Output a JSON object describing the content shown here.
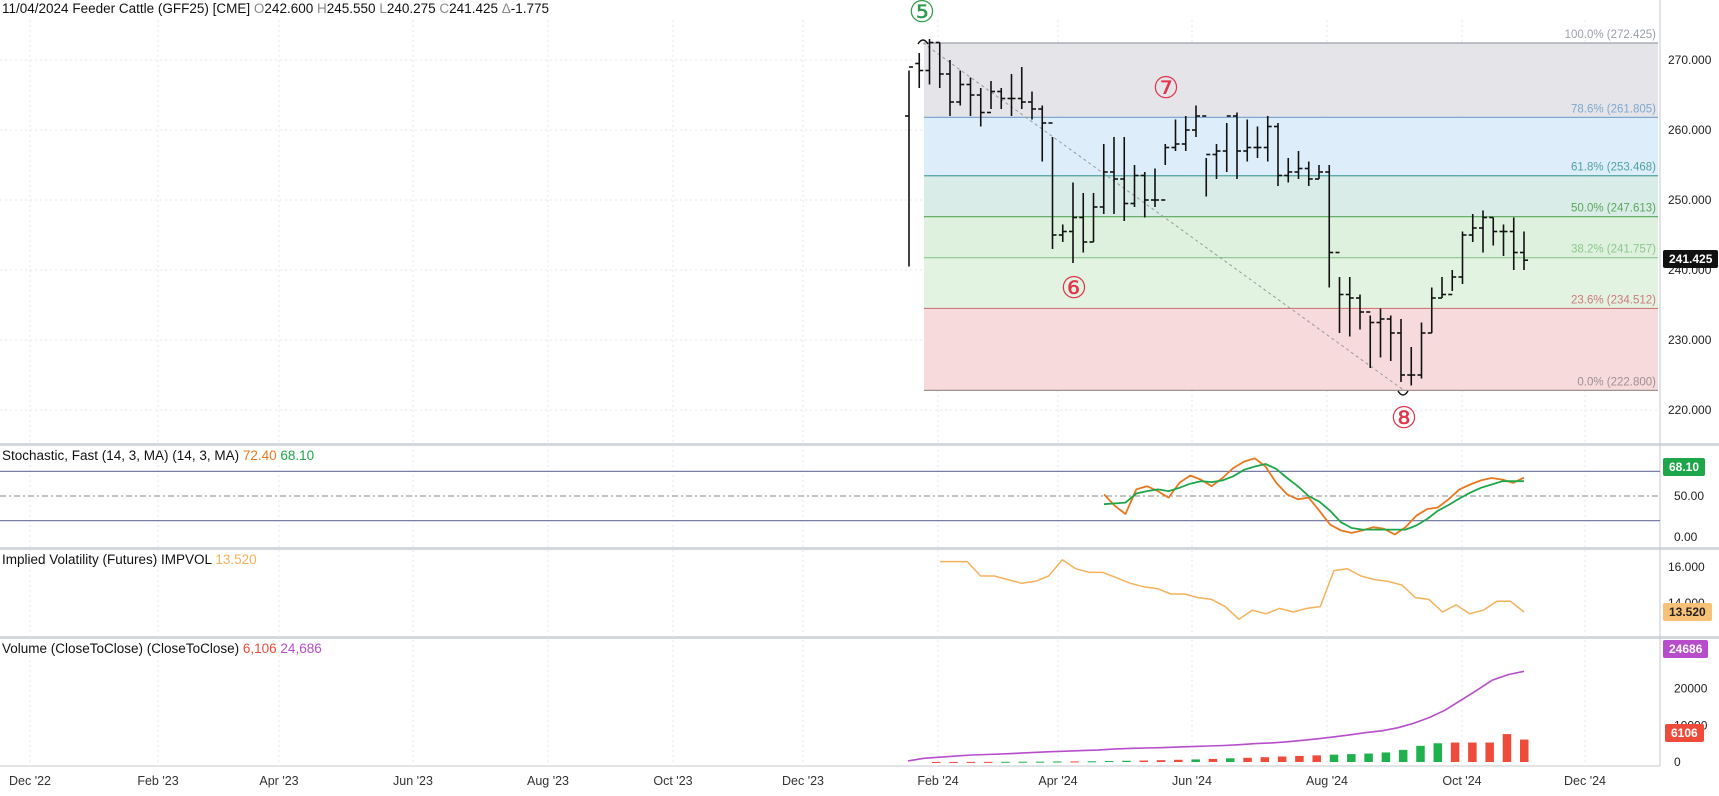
{
  "header": {
    "date": "11/04/2024",
    "symbol": "Feeder Cattle (GFF25) [CME]",
    "open_label": "O",
    "open": "242.600",
    "high_label": "H",
    "high": "245.550",
    "low_label": "L",
    "low": "240.275",
    "close_label": "C",
    "close": "241.425",
    "change_label": "Δ",
    "change": "-1.775"
  },
  "price_panel": {
    "last_price_tag": "241.425",
    "y_ticks": [
      "270.000",
      "260.000",
      "250.000",
      "240.000",
      "230.000",
      "220.000"
    ],
    "fib_levels": [
      {
        "pct": 100.0,
        "label": "100.0% (272.425)",
        "value": 272.425,
        "color": "#9aa0aa"
      },
      {
        "pct": 78.6,
        "label": "78.6% (261.805)",
        "value": 261.805,
        "color": "#7fa7cf"
      },
      {
        "pct": 61.8,
        "label": "61.8% (253.468)",
        "value": 253.468,
        "color": "#4ea3a0"
      },
      {
        "pct": 50.0,
        "label": "50.0% (247.613)",
        "value": 247.613,
        "color": "#5aa85a"
      },
      {
        "pct": 38.2,
        "label": "38.2% (241.757)",
        "value": 241.757,
        "color": "#8cc88c"
      },
      {
        "pct": 23.6,
        "label": "23.6% (234.512)",
        "value": 234.512,
        "color": "#d07a7a"
      },
      {
        "pct": 0.0,
        "label": "0.0% (222.800)",
        "value": 222.8,
        "color": "#a09090"
      }
    ],
    "wave_labels": [
      {
        "text": "⑤",
        "color": "#2e9a4a"
      },
      {
        "text": "⑥",
        "color": "#e0354a"
      },
      {
        "text": "⑦",
        "color": "#e0354a"
      },
      {
        "text": "⑧",
        "color": "#e0354a"
      }
    ],
    "bars": [
      [
        262.0,
        240.5,
        268.5,
        269.0
      ],
      [
        269.5,
        266.0,
        271.0,
        268.5
      ],
      [
        268.5,
        266.5,
        273.0,
        272.5
      ],
      [
        272.5,
        266.0,
        272.5,
        268.0
      ],
      [
        268.0,
        262.0,
        270.0,
        264.0
      ],
      [
        264.0,
        263.5,
        268.5,
        266.5
      ],
      [
        266.5,
        262.0,
        267.5,
        265.0
      ],
      [
        265.0,
        260.5,
        266.0,
        262.5
      ],
      [
        262.5,
        263.0,
        267.0,
        265.5
      ],
      [
        265.5,
        263.0,
        266.0,
        264.5
      ],
      [
        264.5,
        262.0,
        268.0,
        264.5
      ],
      [
        264.5,
        263.0,
        269.0,
        264.0
      ],
      [
        264.0,
        261.5,
        265.5,
        263.0
      ],
      [
        263.0,
        255.5,
        263.5,
        261.0
      ],
      [
        261.0,
        243.0,
        259.0,
        245.0
      ],
      [
        245.0,
        244.0,
        246.5,
        245.5
      ],
      [
        245.5,
        241.0,
        252.5,
        247.5
      ],
      [
        247.5,
        242.5,
        251.0,
        244.0
      ],
      [
        244.0,
        244.0,
        251.0,
        249.0
      ],
      [
        249.0,
        248.0,
        258.0,
        254.0
      ],
      [
        254.0,
        248.0,
        259.0,
        253.0
      ],
      [
        253.0,
        247.0,
        259.0,
        249.5
      ],
      [
        249.5,
        249.0,
        255.0,
        253.5
      ],
      [
        253.5,
        247.5,
        254.0,
        250.0
      ],
      [
        250.0,
        249.0,
        254.5,
        250.0
      ],
      [
        250.0,
        255.0,
        258.0,
        257.5
      ],
      [
        257.5,
        257.0,
        261.5,
        258.0
      ],
      [
        258.0,
        257.0,
        262.0,
        260.0
      ],
      [
        260.0,
        259.0,
        263.5,
        262.0
      ],
      [
        262.0,
        250.5,
        256.0,
        256.5
      ],
      [
        256.5,
        253.0,
        258.0,
        257.0
      ],
      [
        257.0,
        254.0,
        261.0,
        262.0
      ],
      [
        262.0,
        253.0,
        262.5,
        257.0
      ],
      [
        257.0,
        255.5,
        261.5,
        257.5
      ],
      [
        257.5,
        256.0,
        260.5,
        257.5
      ],
      [
        257.5,
        255.5,
        262.0,
        260.5
      ],
      [
        260.5,
        252.0,
        261.0,
        253.5
      ],
      [
        253.5,
        252.5,
        256.0,
        254.0
      ],
      [
        254.0,
        253.0,
        257.0,
        254.5
      ],
      [
        254.5,
        252.0,
        255.5,
        253.0
      ],
      [
        253.0,
        253.0,
        255.0,
        254.0
      ],
      [
        254.0,
        237.5,
        255.0,
        242.5
      ],
      [
        242.5,
        231.0,
        239.0,
        236.5
      ],
      [
        236.5,
        230.5,
        239.0,
        236.0
      ],
      [
        236.0,
        231.5,
        236.5,
        234.0
      ],
      [
        234.0,
        226.0,
        233.5,
        232.5
      ],
      [
        232.5,
        227.5,
        234.5,
        233.0
      ],
      [
        233.0,
        227.0,
        233.5,
        231.0
      ],
      [
        231.0,
        224.0,
        233.0,
        225.0
      ],
      [
        225.0,
        223.5,
        229.0,
        225.0
      ],
      [
        225.0,
        224.5,
        232.5,
        231.0
      ],
      [
        231.0,
        231.0,
        237.5,
        236.0
      ],
      [
        236.0,
        236.0,
        239.0,
        236.5
      ],
      [
        236.5,
        237.0,
        240.0,
        239.0
      ],
      [
        239.0,
        238.0,
        245.5,
        245.0
      ],
      [
        245.0,
        244.0,
        248.0,
        246.0
      ],
      [
        246.0,
        242.5,
        248.5,
        247.5
      ],
      [
        247.5,
        243.5,
        247.5,
        245.5
      ],
      [
        245.5,
        242.0,
        246.5,
        245.5
      ],
      [
        245.5,
        240.0,
        247.5,
        242.5
      ],
      [
        242.5,
        240.0,
        245.5,
        241.4
      ]
    ]
  },
  "stochastic": {
    "title": "Stochastic, Fast (14, 3, MA)  (14, 3, MA)",
    "k_value": "72.40",
    "d_value": "68.10",
    "y_ticks": [
      "50.00",
      "0.00"
    ],
    "tag": "68.10",
    "k_color": "#e8781f",
    "d_color": "#1ea64a",
    "k_series": [
      52,
      38,
      28,
      58,
      62,
      56,
      48,
      66,
      75,
      70,
      62,
      72,
      84,
      92,
      96,
      86,
      66,
      52,
      46,
      48,
      32,
      15,
      8,
      5,
      8,
      12,
      10,
      3,
      12,
      26,
      34,
      36,
      46,
      58,
      64,
      69,
      72,
      70,
      66,
      72.4
    ],
    "d_series": [
      40,
      41,
      42,
      53,
      56,
      58,
      56,
      60,
      65,
      68,
      67,
      69,
      74,
      82,
      86,
      89,
      83,
      72,
      62,
      50,
      43,
      32,
      18,
      11,
      9,
      9,
      9,
      9,
      9,
      14,
      22,
      32,
      39,
      47,
      54,
      60,
      64,
      68,
      68,
      68.1
    ]
  },
  "impvol": {
    "title": "Implied Volatility (Futures)  IMPVOL",
    "value": "13.520",
    "y_ticks": [
      "16.000",
      "14.000"
    ],
    "tag": "13.520",
    "color": "#f5b25c",
    "series": [
      16.3,
      16.3,
      16.3,
      15.5,
      15.5,
      15.3,
      15.1,
      15.2,
      15.5,
      16.4,
      15.9,
      15.7,
      15.7,
      15.4,
      15.1,
      14.9,
      14.8,
      14.5,
      14.5,
      14.3,
      14.2,
      13.8,
      13.1,
      13.6,
      13.4,
      13.7,
      13.5,
      13.7,
      13.8,
      15.8,
      15.9,
      15.5,
      15.3,
      15.2,
      15.0,
      14.3,
      14.2,
      13.5,
      13.9,
      13.4,
      13.6,
      14.1,
      14.1,
      13.5
    ]
  },
  "volume": {
    "title": "Volume (CloseToClose)  (CloseToClose)",
    "vol_value": "6,106",
    "oi_value": "24,686",
    "y_ticks": [
      "20000",
      "10000",
      "0"
    ],
    "vol_tag": "6106",
    "oi_tag": "24686",
    "oi_color": "#b84dcc",
    "vol_up_color": "#1fb14e",
    "vol_down_color": "#ee4b3a",
    "oi_series": [
      300,
      1000,
      1300,
      1600,
      1900,
      2050,
      2200,
      2400,
      2600,
      2800,
      2950,
      3100,
      3250,
      3500,
      3700,
      3800,
      3900,
      4050,
      4200,
      4350,
      4500,
      4700,
      5000,
      5200,
      5500,
      5900,
      6350,
      6850,
      7400,
      8000,
      8500,
      9300,
      10500,
      12100,
      14100,
      16800,
      19500,
      22300,
      23800,
      24686
    ],
    "vol_bars": [
      [
        10,
        "d"
      ],
      [
        20,
        "d"
      ],
      [
        30,
        "d"
      ],
      [
        40,
        "d"
      ],
      [
        60,
        "u"
      ],
      [
        80,
        "u"
      ],
      [
        100,
        "u"
      ],
      [
        130,
        "u"
      ],
      [
        160,
        "d"
      ],
      [
        200,
        "u"
      ],
      [
        250,
        "u"
      ],
      [
        330,
        "u"
      ],
      [
        400,
        "d"
      ],
      [
        500,
        "d"
      ],
      [
        600,
        "d"
      ],
      [
        700,
        "u"
      ],
      [
        850,
        "d"
      ],
      [
        1000,
        "u"
      ],
      [
        1150,
        "d"
      ],
      [
        1300,
        "d"
      ],
      [
        1500,
        "d"
      ],
      [
        1650,
        "d"
      ],
      [
        1800,
        "d"
      ],
      [
        2000,
        "u"
      ],
      [
        2150,
        "u"
      ],
      [
        2300,
        "u"
      ],
      [
        2600,
        "u"
      ],
      [
        3300,
        "u"
      ],
      [
        4400,
        "u"
      ],
      [
        5100,
        "u"
      ],
      [
        5300,
        "d"
      ],
      [
        5300,
        "d"
      ],
      [
        5300,
        "d"
      ],
      [
        7600,
        "d"
      ],
      [
        6106,
        "d"
      ]
    ]
  },
  "x_axis": {
    "labels": [
      "Dec '22",
      "Feb '23",
      "Apr '23",
      "Jun '23",
      "Aug '23",
      "Oct '23",
      "Dec '23",
      "Feb '24",
      "Apr '24",
      "Jun '24",
      "Aug '24",
      "Oct '24",
      "Dec '24"
    ]
  }
}
